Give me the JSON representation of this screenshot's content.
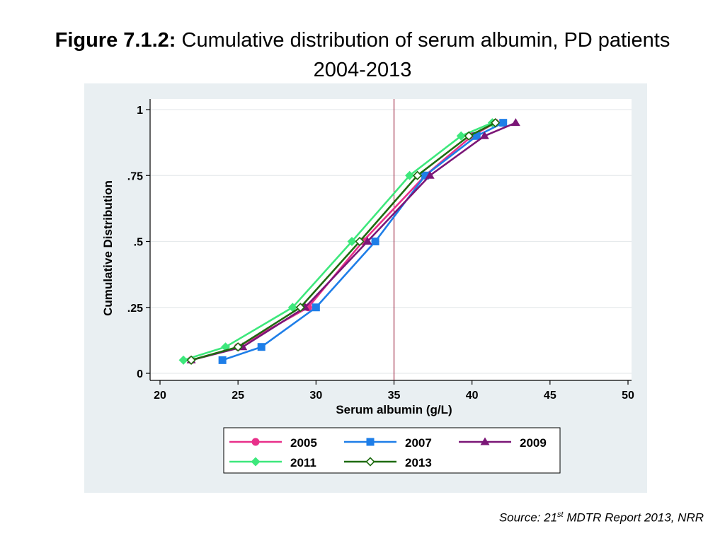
{
  "title": {
    "prefix": "Figure 7.1.2:",
    "text": " Cumulative distribution of serum albumin, PD patients 2004-2013"
  },
  "source": {
    "prefix": "Source: 21",
    "superscript": "st",
    "suffix": " MDTR Report 2013, NRR"
  },
  "colors": {
    "panel_bg": "#e9eff2",
    "plot_bg": "#ffffff",
    "reference_line": "#a0304a",
    "grid": "#e6eaec"
  },
  "chart_data": {
    "type": "line",
    "title": "",
    "xlabel": "Serum albumin (g/L)",
    "ylabel": "Cumulative Distribution",
    "xlim": [
      20,
      50
    ],
    "ylim": [
      0,
      1
    ],
    "x_ticks": [
      20,
      25,
      30,
      35,
      40,
      45,
      50
    ],
    "x_tick_labels": [
      "20",
      "25",
      "30",
      "35",
      "40",
      "45",
      "50"
    ],
    "y_ticks": [
      0,
      0.25,
      0.5,
      0.75,
      1
    ],
    "y_tick_labels": [
      "0",
      ".25",
      ".5",
      ".75",
      "1"
    ],
    "reference_x": 35,
    "grid": true,
    "legend_position": "bottom",
    "series": [
      {
        "name": "2005",
        "color": "#e8308a",
        "marker": "circle",
        "points": [
          [
            22,
            0.05
          ],
          [
            25,
            0.1
          ],
          [
            29.5,
            0.25
          ],
          [
            33,
            0.5
          ],
          [
            37,
            0.75
          ],
          [
            40,
            0.9
          ],
          [
            41.5,
            0.95
          ]
        ]
      },
      {
        "name": "2007",
        "color": "#1e7ee8",
        "marker": "square",
        "points": [
          [
            24,
            0.05
          ],
          [
            26.5,
            0.1
          ],
          [
            30,
            0.25
          ],
          [
            33.8,
            0.5
          ],
          [
            37,
            0.75
          ],
          [
            40.3,
            0.9
          ],
          [
            42,
            0.95
          ]
        ]
      },
      {
        "name": "2009",
        "color": "#7b1677",
        "marker": "triangle",
        "points": [
          [
            22,
            0.05
          ],
          [
            25.3,
            0.1
          ],
          [
            29.3,
            0.25
          ],
          [
            33.3,
            0.5
          ],
          [
            37.3,
            0.75
          ],
          [
            40.8,
            0.9
          ],
          [
            42.8,
            0.95
          ]
        ]
      },
      {
        "name": "2011",
        "color": "#3de87c",
        "marker": "diamond",
        "points": [
          [
            21.5,
            0.05
          ],
          [
            24.2,
            0.1
          ],
          [
            28.5,
            0.25
          ],
          [
            32.3,
            0.5
          ],
          [
            36,
            0.75
          ],
          [
            39.3,
            0.9
          ],
          [
            41.3,
            0.95
          ]
        ]
      },
      {
        "name": "2013",
        "color": "#1e6b10",
        "marker": "diamond-open",
        "points": [
          [
            22,
            0.05
          ],
          [
            25,
            0.1
          ],
          [
            29,
            0.25
          ],
          [
            32.8,
            0.5
          ],
          [
            36.5,
            0.75
          ],
          [
            39.8,
            0.9
          ],
          [
            41.5,
            0.95
          ]
        ]
      }
    ]
  }
}
